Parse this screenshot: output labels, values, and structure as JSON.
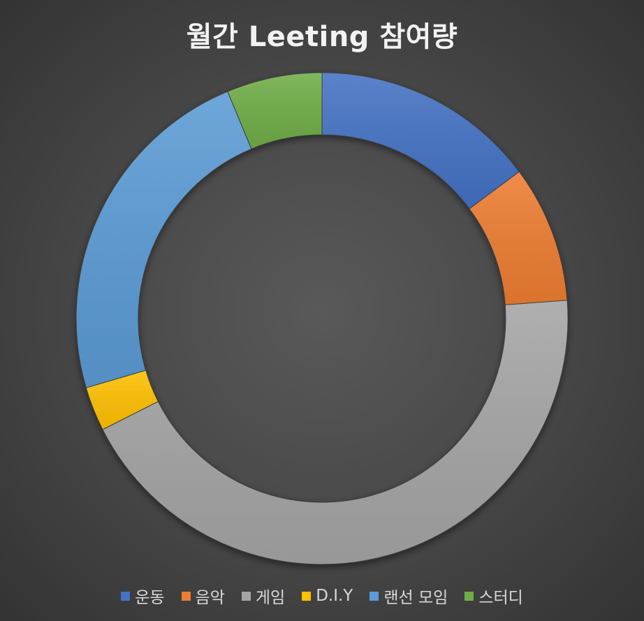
{
  "chart_data": {
    "type": "pie",
    "subtype": "donut",
    "title": "월간 Leeting 참여량",
    "categories": [
      "운동",
      "음악",
      "게임",
      "D.I.Y",
      "랜선 모임",
      "스터디"
    ],
    "values": [
      16.3,
      9.9,
      48.1,
      3.2,
      25.6,
      6.9
    ],
    "unit": "percent",
    "colors": [
      "#4472C4",
      "#ED7D31",
      "#A5A5A5",
      "#FFC000",
      "#5B9BD5",
      "#70AD47"
    ],
    "start_angle_deg": 0,
    "direction": "clockwise",
    "legend": "bottom"
  }
}
